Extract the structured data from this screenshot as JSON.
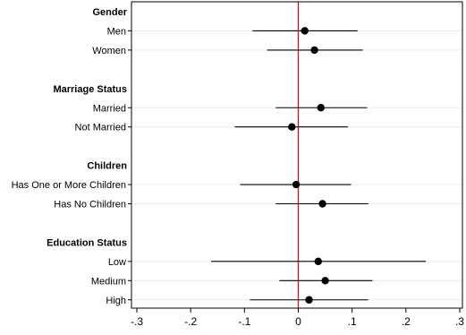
{
  "chart_data": {
    "type": "scatter",
    "subtype": "coefficient-plot",
    "title": "",
    "xlabel": "",
    "ylabel": "",
    "xlim": [
      -0.31,
      0.305
    ],
    "xticks": [
      -0.3,
      -0.2,
      -0.1,
      0,
      0.1,
      0.2,
      0.3
    ],
    "xtick_labels": [
      "-.3",
      "-.2",
      "-.1",
      "0",
      ".1",
      ".2",
      ".3"
    ],
    "reference_line": {
      "x": 0,
      "color": "#c8102e"
    },
    "grid": "horizontal",
    "colors": {
      "marker": "#000000",
      "ci": "#000000",
      "grid": "#ececec",
      "frame": "#000000"
    },
    "groups": [
      {
        "label": "Gender",
        "rows": [
          {
            "label": "Men",
            "estimate": 0.012,
            "ci_low": -0.085,
            "ci_high": 0.11
          },
          {
            "label": "Women",
            "estimate": 0.03,
            "ci_low": -0.058,
            "ci_high": 0.12
          }
        ]
      },
      {
        "label": "Marriage Status",
        "rows": [
          {
            "label": "Married",
            "estimate": 0.042,
            "ci_low": -0.042,
            "ci_high": 0.128
          },
          {
            "label": "Not Married",
            "estimate": -0.012,
            "ci_low": -0.118,
            "ci_high": 0.092
          }
        ]
      },
      {
        "label": "Children",
        "rows": [
          {
            "label": "Has One or More Children",
            "estimate": -0.004,
            "ci_low": -0.108,
            "ci_high": 0.098
          },
          {
            "label": "Has No Children",
            "estimate": 0.045,
            "ci_low": -0.042,
            "ci_high": 0.13
          }
        ]
      },
      {
        "label": "Education Status",
        "rows": [
          {
            "label": "Low",
            "estimate": 0.037,
            "ci_low": -0.162,
            "ci_high": 0.237
          },
          {
            "label": "Medium",
            "estimate": 0.05,
            "ci_low": -0.035,
            "ci_high": 0.138
          },
          {
            "label": "High",
            "estimate": 0.02,
            "ci_low": -0.09,
            "ci_high": 0.13
          }
        ]
      }
    ]
  }
}
